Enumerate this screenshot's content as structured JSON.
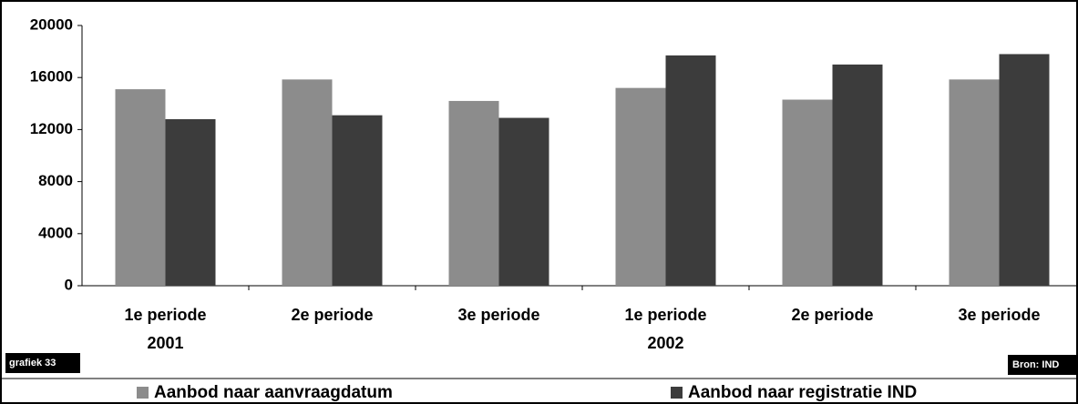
{
  "chart_data": {
    "type": "bar",
    "categories": [
      "1e periode",
      "2e periode",
      "3e periode",
      "1e periode",
      "2e periode",
      "3e periode"
    ],
    "category_years": [
      "2001",
      null,
      null,
      "2002",
      null,
      null
    ],
    "series": [
      {
        "name": "Aanbod naar aanvraagdatum",
        "color": "#8c8c8c",
        "values": [
          15100,
          15850,
          14200,
          15200,
          14300,
          15850
        ]
      },
      {
        "name": "Aanbod naar registratie IND",
        "color": "#3c3c3c",
        "values": [
          12800,
          13100,
          12900,
          17700,
          17000,
          17800
        ]
      }
    ],
    "ylim": [
      0,
      20000
    ],
    "yticks": [
      0,
      4000,
      8000,
      12000,
      16000,
      20000
    ],
    "label": "grafiek 33",
    "source": "Bron: IND"
  }
}
